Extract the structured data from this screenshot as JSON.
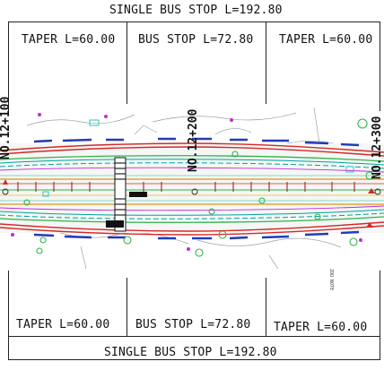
{
  "top": {
    "overall": "SINGLE BUS STOP L=192.80",
    "segments": [
      "TAPER L=60.00",
      "BUS STOP L=72.80",
      "TAPER L=60.00"
    ]
  },
  "bottom": {
    "overall": "SINGLE BUS STOP L=192.80",
    "segments": [
      "TAPER L=60.00",
      "BUS STOP L=72.80",
      "TAPER L=60.00"
    ]
  },
  "stations": [
    "NO.12+100",
    "NO.12+200",
    "NO.12+300"
  ],
  "note": "ZOU NOTE",
  "colors": {
    "road_edge": "#d62828",
    "lane_marking": "#1f3cb8",
    "centerline": "#e8a33a",
    "alignment": "#00a39a",
    "vegetation": "#2fb34a",
    "magenta": "#c22bd6"
  }
}
